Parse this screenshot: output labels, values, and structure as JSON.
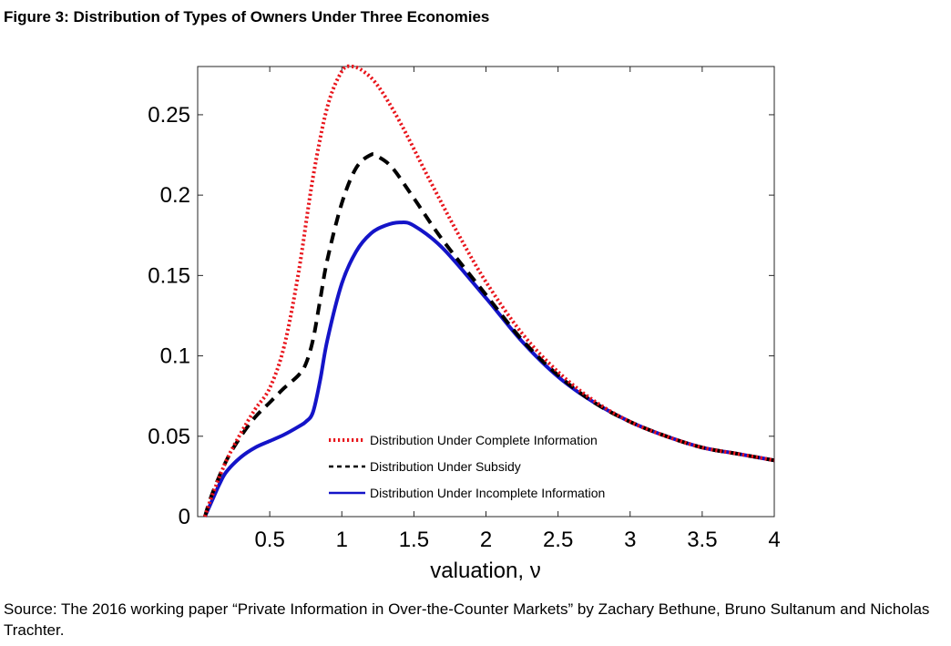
{
  "figure": {
    "title": "Figure 3: Distribution of Types of Owners Under Three Economies",
    "source": "Source: The 2016 working paper “Private Information in Over-the-Counter Markets” by Zachary Bethune, Bruno Sultanum and Nicholas Trachter."
  },
  "chart_data": {
    "type": "line",
    "title": "",
    "xlabel": "valuation, ν",
    "ylabel": "",
    "xlim": [
      0,
      4
    ],
    "ylim": [
      0,
      0.28
    ],
    "xticks": [
      0.5,
      1,
      1.5,
      2,
      2.5,
      3,
      3.5,
      4
    ],
    "xtick_labels": [
      "0.5",
      "1",
      "1.5",
      "2",
      "2.5",
      "3",
      "3.5",
      "4"
    ],
    "yticks": [
      0,
      0.05,
      0.1,
      0.15,
      0.2,
      0.25
    ],
    "ytick_labels": [
      "0",
      "0.05",
      "0.1",
      "0.15",
      "0.2",
      "0.25"
    ],
    "grid": false,
    "legend_position": "bottom-right",
    "series": [
      {
        "name": "Distribution Under Complete Information",
        "color": "#e8141b",
        "style": "dotted",
        "x": [
          0.05,
          0.1,
          0.2,
          0.3,
          0.4,
          0.5,
          0.6,
          0.7,
          0.8,
          0.9,
          1.0,
          1.07,
          1.15,
          1.25,
          1.4,
          1.6,
          1.8,
          2.0,
          2.25,
          2.5,
          2.75,
          3.0,
          3.25,
          3.5,
          3.75,
          4.0
        ],
        "y": [
          0.0,
          0.013,
          0.035,
          0.052,
          0.067,
          0.08,
          0.106,
          0.152,
          0.211,
          0.255,
          0.277,
          0.28,
          0.277,
          0.268,
          0.246,
          0.211,
          0.177,
          0.146,
          0.114,
          0.09,
          0.072,
          0.059,
          0.05,
          0.043,
          0.039,
          0.035
        ]
      },
      {
        "name": "Distribution Under Subsidy",
        "color": "#000000",
        "style": "dashed",
        "x": [
          0.05,
          0.1,
          0.2,
          0.3,
          0.4,
          0.5,
          0.6,
          0.7,
          0.75,
          0.8,
          0.85,
          0.9,
          1.0,
          1.1,
          1.2,
          1.25,
          1.35,
          1.5,
          1.7,
          2.0,
          2.25,
          2.5,
          2.75,
          3.0,
          3.25,
          3.5,
          3.75,
          4.0
        ],
        "y": [
          0.0,
          0.014,
          0.035,
          0.05,
          0.062,
          0.071,
          0.08,
          0.088,
          0.095,
          0.11,
          0.135,
          0.16,
          0.195,
          0.217,
          0.225,
          0.224,
          0.217,
          0.198,
          0.172,
          0.138,
          0.11,
          0.088,
          0.071,
          0.059,
          0.05,
          0.043,
          0.039,
          0.035
        ]
      },
      {
        "name": "Distribution Under Incomplete Information",
        "color": "#1414c8",
        "style": "solid",
        "x": [
          0.05,
          0.1,
          0.15,
          0.2,
          0.3,
          0.4,
          0.5,
          0.6,
          0.7,
          0.75,
          0.8,
          0.85,
          0.9,
          1.0,
          1.1,
          1.2,
          1.3,
          1.4,
          1.5,
          1.7,
          2.0,
          2.25,
          2.5,
          2.75,
          3.0,
          3.25,
          3.5,
          3.75,
          4.0
        ],
        "y": [
          0.0,
          0.01,
          0.02,
          0.028,
          0.037,
          0.043,
          0.047,
          0.051,
          0.056,
          0.059,
          0.065,
          0.085,
          0.11,
          0.145,
          0.165,
          0.176,
          0.181,
          0.183,
          0.181,
          0.167,
          0.136,
          0.109,
          0.087,
          0.071,
          0.059,
          0.05,
          0.043,
          0.039,
          0.035
        ]
      }
    ]
  }
}
